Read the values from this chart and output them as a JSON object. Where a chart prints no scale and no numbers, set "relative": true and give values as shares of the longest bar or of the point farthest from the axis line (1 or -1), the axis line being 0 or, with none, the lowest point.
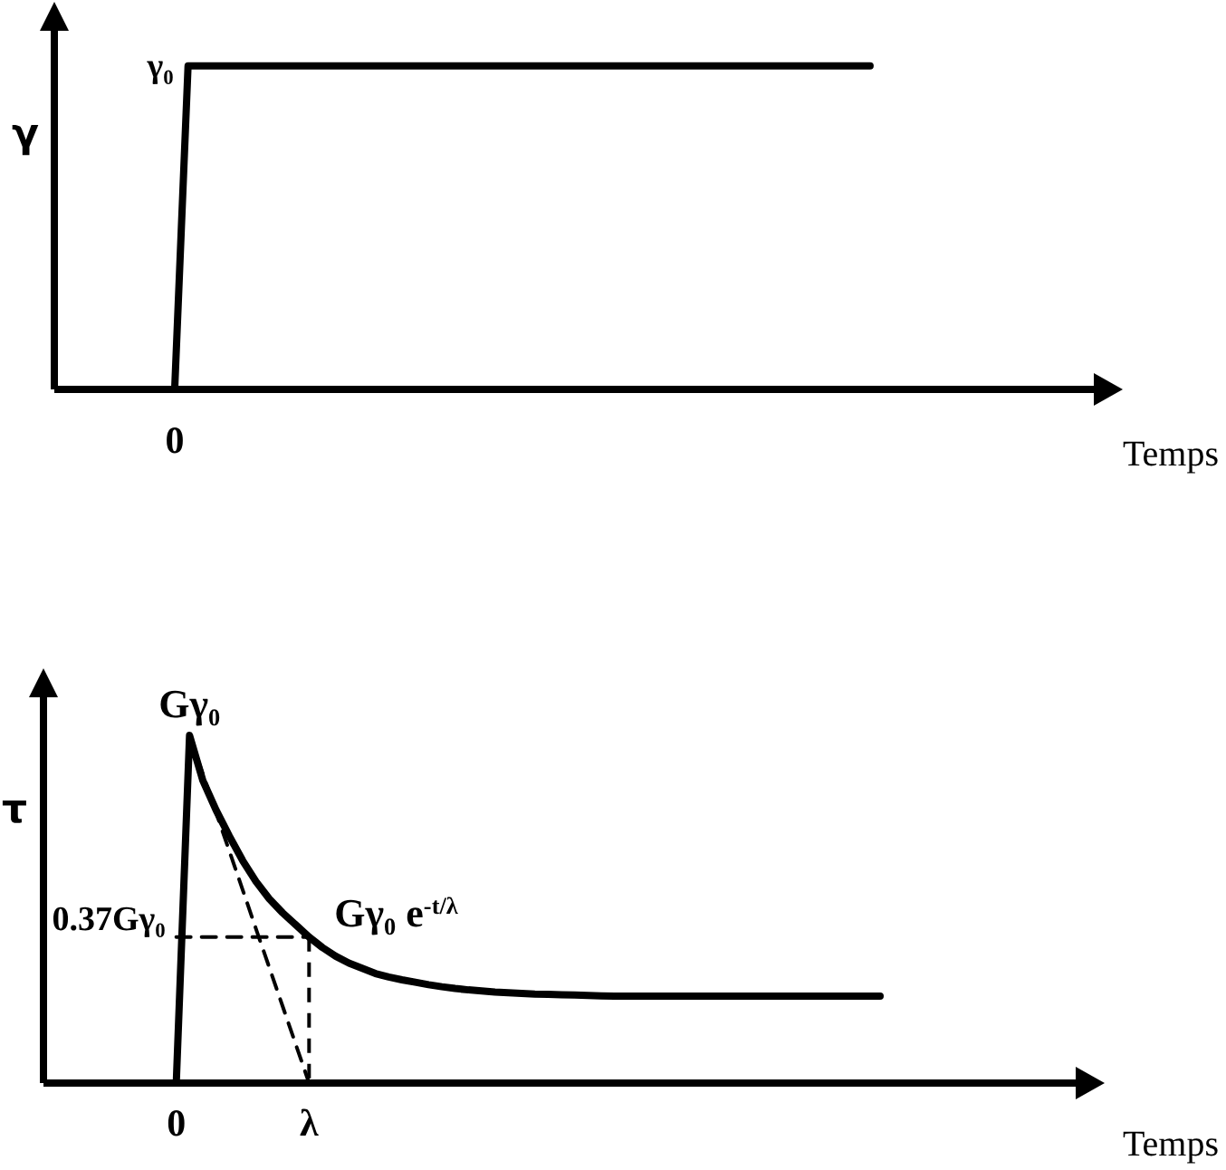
{
  "chart_data": [
    {
      "type": "line",
      "relative": true,
      "ylabel": "γ",
      "xlabel": "Temps",
      "categories": [
        null,
        null,
        null,
        null,
        null,
        null,
        null,
        null,
        null,
        null,
        null,
        null,
        null,
        null,
        null,
        null,
        null,
        null,
        null,
        null,
        null,
        null,
        null,
        null,
        null,
        null,
        null,
        null,
        null,
        null,
        null,
        null,
        null,
        null,
        null,
        null,
        null,
        null,
        null,
        null,
        null,
        null,
        null,
        null,
        null,
        null,
        null,
        null,
        null,
        null,
        null,
        null,
        null,
        null,
        null,
        null,
        null,
        null,
        null,
        null,
        null,
        null,
        null,
        null,
        null,
        null,
        null,
        null,
        null,
        null,
        null,
        null,
        null,
        null,
        null,
        null,
        null,
        null,
        null
      ],
      "series": [
        {
          "color": "#000000",
          "values": [
            null,
            null,
            null,
            null,
            null,
            null,
            null,
            null,
            null,
            0,
            1,
            1,
            1,
            1,
            1,
            1,
            1,
            1,
            1,
            1,
            1,
            1,
            1,
            1,
            1,
            1,
            1,
            1,
            1,
            1,
            1,
            1,
            1,
            1,
            1,
            1,
            1,
            1,
            1,
            1,
            1,
            1,
            1,
            1,
            1,
            1,
            1,
            1,
            1,
            1,
            1,
            1,
            1,
            1,
            1,
            1,
            1,
            1,
            1,
            1,
            1,
            1,
            null,
            null,
            null,
            null,
            null,
            null,
            null,
            null,
            null,
            null,
            null,
            null,
            null,
            null,
            null,
            null,
            null
          ]
        }
      ],
      "annotations": [
        "γ₀",
        {
          "text": "0",
          "y": 0
        }
      ]
    },
    {
      "type": "line",
      "relative": true,
      "ylabel": "τ",
      "xlabel": "Temps",
      "categories": [
        null,
        null,
        null,
        null,
        null,
        null,
        null,
        null,
        null,
        null,
        "0",
        null,
        null,
        null,
        null,
        null,
        null,
        null,
        null,
        null,
        "λ",
        null,
        null,
        null,
        null,
        null,
        null,
        null,
        null,
        null,
        null,
        null,
        null,
        null,
        null,
        null,
        null,
        null,
        null,
        null,
        null,
        null,
        null,
        null,
        null,
        null,
        null,
        null,
        null,
        null,
        null,
        null,
        null,
        null,
        null,
        null,
        null,
        null,
        null,
        null,
        null,
        null,
        null,
        null,
        null,
        null,
        null,
        null,
        null,
        null,
        null,
        null,
        null,
        null,
        null,
        null,
        null,
        null,
        null
      ],
      "series": [
        {
          "color": "#000000",
          "values": [
            null,
            null,
            null,
            null,
            null,
            null,
            null,
            null,
            null,
            null,
            0,
            1,
            0.87,
            0.785,
            0.71,
            0.64,
            0.58,
            0.53,
            0.49,
            0.455,
            0.42,
            0.39,
            0.365,
            0.345,
            0.33,
            0.315,
            0.305,
            0.297,
            0.29,
            0.283,
            0.277,
            0.272,
            0.268,
            0.265,
            0.262,
            0.26,
            0.258,
            0.256,
            0.255,
            0.254,
            0.253,
            0.252,
            0.251,
            0.25,
            0.25,
            0.25,
            0.25,
            0.25,
            0.25,
            0.25,
            0.25,
            0.25,
            0.25,
            0.25,
            0.25,
            0.25,
            0.25,
            0.25,
            0.25,
            0.25,
            0.25,
            0.25,
            0.25,
            0.25,
            null,
            null,
            null,
            null,
            null,
            null,
            null,
            null,
            null,
            null,
            null,
            null,
            null,
            null,
            null
          ]
        },
        {
          "color": "#000000",
          "line_style": "dashed",
          "values": [
            null,
            null,
            null,
            null,
            null,
            null,
            null,
            null,
            null,
            null,
            null,
            1,
            0.889,
            0.778,
            0.667,
            0.556,
            0.444,
            0.333,
            0.222,
            0.111,
            0,
            null,
            null,
            null,
            null,
            null,
            null,
            null,
            null,
            null,
            null,
            null,
            null,
            null,
            null,
            null,
            null,
            null,
            null,
            null,
            null,
            null,
            null,
            null,
            null,
            null,
            null,
            null,
            null,
            null,
            null,
            null,
            null,
            null,
            null,
            null,
            null,
            null,
            null,
            null,
            null,
            null,
            null,
            null,
            null,
            null,
            null,
            null,
            null,
            null,
            null,
            null,
            null,
            null,
            null,
            null,
            null,
            null,
            null
          ]
        },
        {
          "color": "#000000",
          "line_style": "dashed",
          "values": [
            null,
            null,
            null,
            null,
            null,
            null,
            null,
            null,
            null,
            null,
            0.42,
            0.42,
            0.42,
            0.42,
            0.42,
            0.42,
            0.42,
            0.42,
            0.42,
            0.42,
            0.42,
            null,
            null,
            null,
            null,
            null,
            null,
            null,
            null,
            null,
            null,
            null,
            null,
            null,
            null,
            null,
            null,
            null,
            null,
            null,
            null,
            null,
            null,
            null,
            null,
            null,
            null,
            null,
            null,
            null,
            null,
            null,
            null,
            null,
            null,
            null,
            null,
            null,
            null,
            null,
            null,
            null,
            null,
            null,
            null,
            null,
            null,
            null,
            null,
            null,
            null,
            null,
            null,
            null,
            null,
            null,
            null,
            null,
            null
          ]
        }
      ],
      "annotations": [
        {
          "text": "Gγ₀",
          "y": 1
        },
        {
          "text": "0.37Gγ₀",
          "x": "0",
          "y": 0.42
        },
        {
          "text": "Gγ₀ e$^{-t/λ}$",
          "x": "λ",
          "y": 0.42
        }
      ]
    }
  ]
}
